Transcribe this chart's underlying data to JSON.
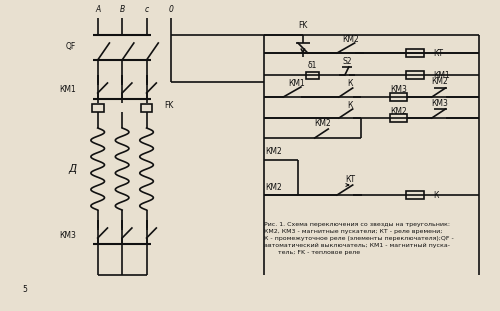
{
  "bg_color": "#e8e0d0",
  "line_color": "#111111",
  "text_color": "#111111",
  "caption": "Рис. 1. Схема переключения со звезды на треугольник:\nКМ2, КМ3 - магнитные пускатели; КТ - реле времени;\nК - промежуточное реле (элементы переключателя);QF -\nавтоматический выключатель; КМ1 - магнитный пуска-\n       тель; FK - тепловое реле",
  "phase_labels": [
    "A",
    "B",
    "c",
    "0"
  ],
  "num5": "5"
}
